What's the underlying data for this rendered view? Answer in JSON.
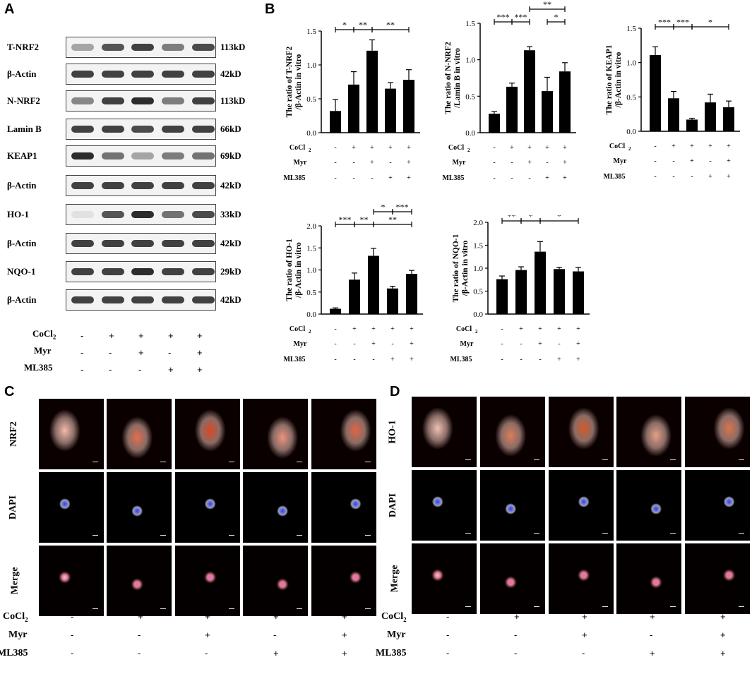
{
  "panels": {
    "a": "A",
    "b": "B",
    "c": "C",
    "d": "D"
  },
  "blots": [
    {
      "label": "T-NRF2",
      "kd": "113kD"
    },
    {
      "label": "β-Actin",
      "kd": "42kD"
    },
    {
      "label": "N-NRF2",
      "kd": "113kD"
    },
    {
      "label": "Lamin B",
      "kd": "66kD"
    },
    {
      "label": "KEAP1",
      "kd": "69kD"
    },
    {
      "label": "β-Actin",
      "kd": "42kD"
    },
    {
      "label": "HO-1",
      "kd": "33kD"
    },
    {
      "label": "β-Actin",
      "kd": "42kD"
    },
    {
      "label": "NQO-1",
      "kd": "29kD"
    },
    {
      "label": "β-Actin",
      "kd": "42kD"
    }
  ],
  "treatments": {
    "labels": {
      "cocl": "CoCl",
      "cocl_sub": "2",
      "myr": "Myr",
      "ml385": "ML385"
    },
    "cocl": [
      "-",
      "+",
      "+",
      "+",
      "+"
    ],
    "myr": [
      "-",
      "-",
      "+",
      "-",
      "+"
    ],
    "ml385": [
      "-",
      "-",
      "-",
      "+",
      "+"
    ]
  },
  "chart_data": [
    {
      "type": "bar",
      "ylabel": "The ratio of T-NRF2 /β-Actin in vitro",
      "ylim": [
        0,
        1.5
      ],
      "yticks": [
        "0.0",
        "0.5",
        "1.0",
        "1.5"
      ],
      "values": [
        0.32,
        0.71,
        1.21,
        0.65,
        0.78
      ],
      "errors": [
        0.17,
        0.19,
        0.16,
        0.09,
        0.15
      ],
      "sig": [
        {
          "a": 0,
          "b": 1,
          "t": "*",
          "l": 0
        },
        {
          "a": 1,
          "b": 2,
          "t": "**",
          "l": 0
        },
        {
          "a": 2,
          "b": 4,
          "t": "**",
          "l": 0
        }
      ]
    },
    {
      "type": "bar",
      "ylabel": "The ratio of N-NRF2 /Lamin B in vitro",
      "ylim": [
        0,
        1.5
      ],
      "yticks": [
        "0.0",
        "0.5",
        "1.0",
        "1.5"
      ],
      "values": [
        0.26,
        0.63,
        1.13,
        0.57,
        0.84
      ],
      "errors": [
        0.03,
        0.05,
        0.05,
        0.19,
        0.12
      ],
      "sig": [
        {
          "a": 0,
          "b": 1,
          "t": "***",
          "l": 0
        },
        {
          "a": 1,
          "b": 2,
          "t": "***",
          "l": 0
        },
        {
          "a": 3,
          "b": 4,
          "t": "*",
          "l": 0
        },
        {
          "a": 2,
          "b": 4,
          "t": "**",
          "l": 1
        }
      ]
    },
    {
      "type": "bar",
      "ylabel": "The ratio of KEAP1 /β-Actin in vitro",
      "ylim": [
        0,
        1.5
      ],
      "yticks": [
        "0.0",
        "0.5",
        "1.0",
        "1.5"
      ],
      "values": [
        1.11,
        0.48,
        0.17,
        0.42,
        0.35
      ],
      "errors": [
        0.12,
        0.1,
        0.02,
        0.12,
        0.09
      ],
      "sig": [
        {
          "a": 0,
          "b": 1,
          "t": "***",
          "l": 0
        },
        {
          "a": 1,
          "b": 2,
          "t": "***",
          "l": 0
        },
        {
          "a": 2,
          "b": 4,
          "t": "*",
          "l": 0
        }
      ]
    },
    {
      "type": "bar",
      "ylabel": "The ratio of HO-1 /β-Actin in vitro",
      "ylim": [
        0,
        2.0
      ],
      "yticks": [
        "0.0",
        "0.5",
        "1.0",
        "1.5",
        "2.0"
      ],
      "values": [
        0.12,
        0.78,
        1.32,
        0.58,
        0.91
      ],
      "errors": [
        0.02,
        0.15,
        0.17,
        0.05,
        0.08
      ],
      "sig": [
        {
          "a": 0,
          "b": 1,
          "t": "***",
          "l": 0
        },
        {
          "a": 1,
          "b": 2,
          "t": "**",
          "l": 0
        },
        {
          "a": 2,
          "b": 4,
          "t": "**",
          "l": 0
        },
        {
          "a": 2,
          "b": 3,
          "t": "*",
          "l": 1
        },
        {
          "a": 3,
          "b": 4,
          "t": "***",
          "l": 1
        }
      ]
    },
    {
      "type": "bar",
      "ylabel": "The ratio of NQO-1 /β-Actin in vitro",
      "ylim": [
        0,
        2.0
      ],
      "yticks": [
        "0.0",
        "0.5",
        "1.0",
        "1.5",
        "2.0"
      ],
      "values": [
        0.76,
        0.96,
        1.36,
        0.98,
        0.93
      ],
      "errors": [
        0.07,
        0.07,
        0.22,
        0.04,
        0.09
      ],
      "sig": [
        {
          "a": 0,
          "b": 1,
          "t": "**",
          "l": 0
        },
        {
          "a": 1,
          "b": 2,
          "t": "*",
          "l": 0
        },
        {
          "a": 2,
          "b": 4,
          "t": "*",
          "l": 0
        }
      ]
    }
  ],
  "micro_c": {
    "rows": [
      "NRF2",
      "DAPI",
      "Merge"
    ]
  },
  "micro_d": {
    "rows": [
      "HO-1",
      "DAPI",
      "Merge"
    ]
  }
}
